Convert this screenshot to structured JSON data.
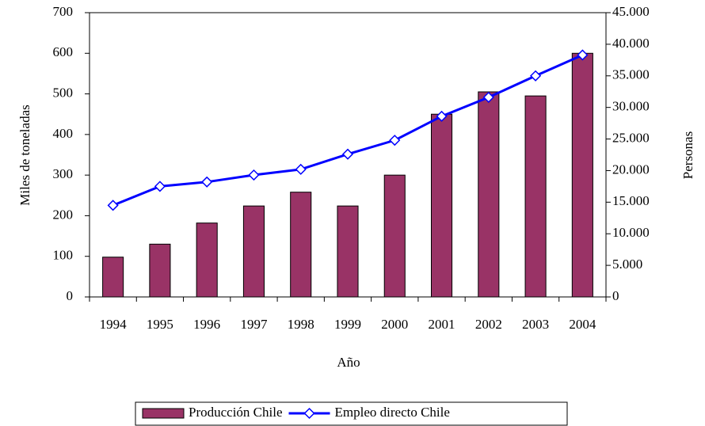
{
  "chart_data": {
    "type": "bar",
    "x_label": "Año",
    "y_label": "Miles de toneladas",
    "y2_label": "Personas",
    "categories": [
      "1994",
      "1995",
      "1996",
      "1997",
      "1998",
      "1999",
      "2000",
      "2001",
      "2002",
      "2003",
      "2004"
    ],
    "series": [
      {
        "name": "Producción Chile",
        "type": "bar",
        "color": "#993366",
        "values": [
          98,
          130,
          182,
          224,
          258,
          224,
          300,
          450,
          505,
          495,
          600
        ]
      },
      {
        "name": "Empleo directo Chile",
        "type": "line",
        "axis": "y2",
        "color": "#0000ff",
        "values": [
          14500,
          17500,
          18200,
          19300,
          20200,
          22600,
          24800,
          28600,
          31600,
          35000,
          38300
        ]
      }
    ],
    "ylim": [
      0,
      700
    ],
    "yticks": [
      0,
      100,
      200,
      300,
      400,
      500,
      600,
      700
    ],
    "y2lim": [
      0,
      45000
    ],
    "y2ticks": [
      0,
      {
        "value": 5000,
        "label": "5.000"
      },
      {
        "value": 10000,
        "label": "10.000"
      },
      {
        "value": 15000,
        "label": "15.000"
      },
      {
        "value": 20000,
        "label": "20.000"
      },
      {
        "value": 25000,
        "label": "25.000"
      },
      {
        "value": 30000,
        "label": "30.000"
      },
      {
        "value": 35000,
        "label": "35.000"
      },
      {
        "value": 40000,
        "label": "40.000"
      },
      {
        "value": 45000,
        "label": "45.000"
      }
    ],
    "legend": "bottom"
  }
}
